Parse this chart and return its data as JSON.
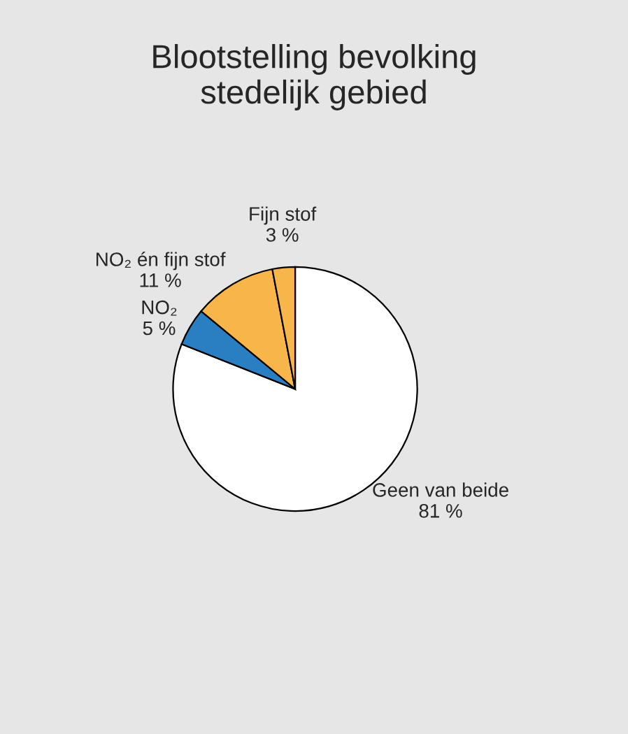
{
  "chart_data": {
    "type": "pie",
    "title": "Blootstelling bevolking\nstedelijk gebied",
    "categories": [
      "Geen van beide",
      "NO₂",
      "NO₂ én fijn stof",
      "Fijn stof"
    ],
    "values": [
      81,
      5,
      11,
      3
    ],
    "colors": [
      "#ffffff",
      "#2a7fc2",
      "#f7b54a",
      "#f7b54a"
    ],
    "value_labels": [
      "81 %",
      "5 %",
      "11 %",
      "3 %"
    ]
  }
}
